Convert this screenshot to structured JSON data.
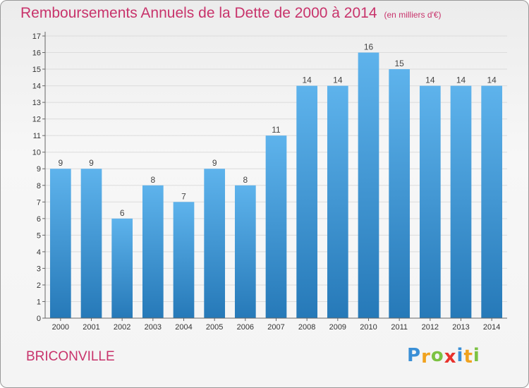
{
  "header": {
    "title": "Remboursements Annuels de la Dette de 2000 à 2014",
    "unit": "(en milliers d'€)"
  },
  "footer": {
    "town": "BRICONVILLE",
    "logo_letters": [
      "P",
      "r",
      "o",
      "x",
      "i",
      "t",
      "i"
    ],
    "logo_colors": [
      "#3a8fd6",
      "#f0a21e",
      "#7cc242",
      "#e8322c",
      "#3a8fd6",
      "#f0a21e",
      "#7cc242"
    ]
  },
  "chart_data": {
    "type": "bar",
    "title": "Remboursements Annuels de la Dette de 2000 à 2014",
    "categories": [
      "2000",
      "2001",
      "2002",
      "2003",
      "2004",
      "2005",
      "2006",
      "2007",
      "2008",
      "2009",
      "2010",
      "2011",
      "2012",
      "2013",
      "2014"
    ],
    "values": [
      9,
      9,
      6,
      8,
      7,
      9,
      8,
      11,
      14,
      14,
      16,
      15,
      14,
      14,
      14
    ],
    "xlabel": "",
    "ylabel": "",
    "ylim": [
      0,
      17
    ],
    "yticks": [
      0,
      1,
      2,
      3,
      4,
      5,
      6,
      7,
      8,
      9,
      10,
      11,
      12,
      13,
      14,
      15,
      16,
      17
    ],
    "grid": true,
    "colors": {
      "bar_top": "#5eb3ec",
      "bar_bottom": "#2679b8",
      "grid": "#dcdcdc"
    }
  }
}
